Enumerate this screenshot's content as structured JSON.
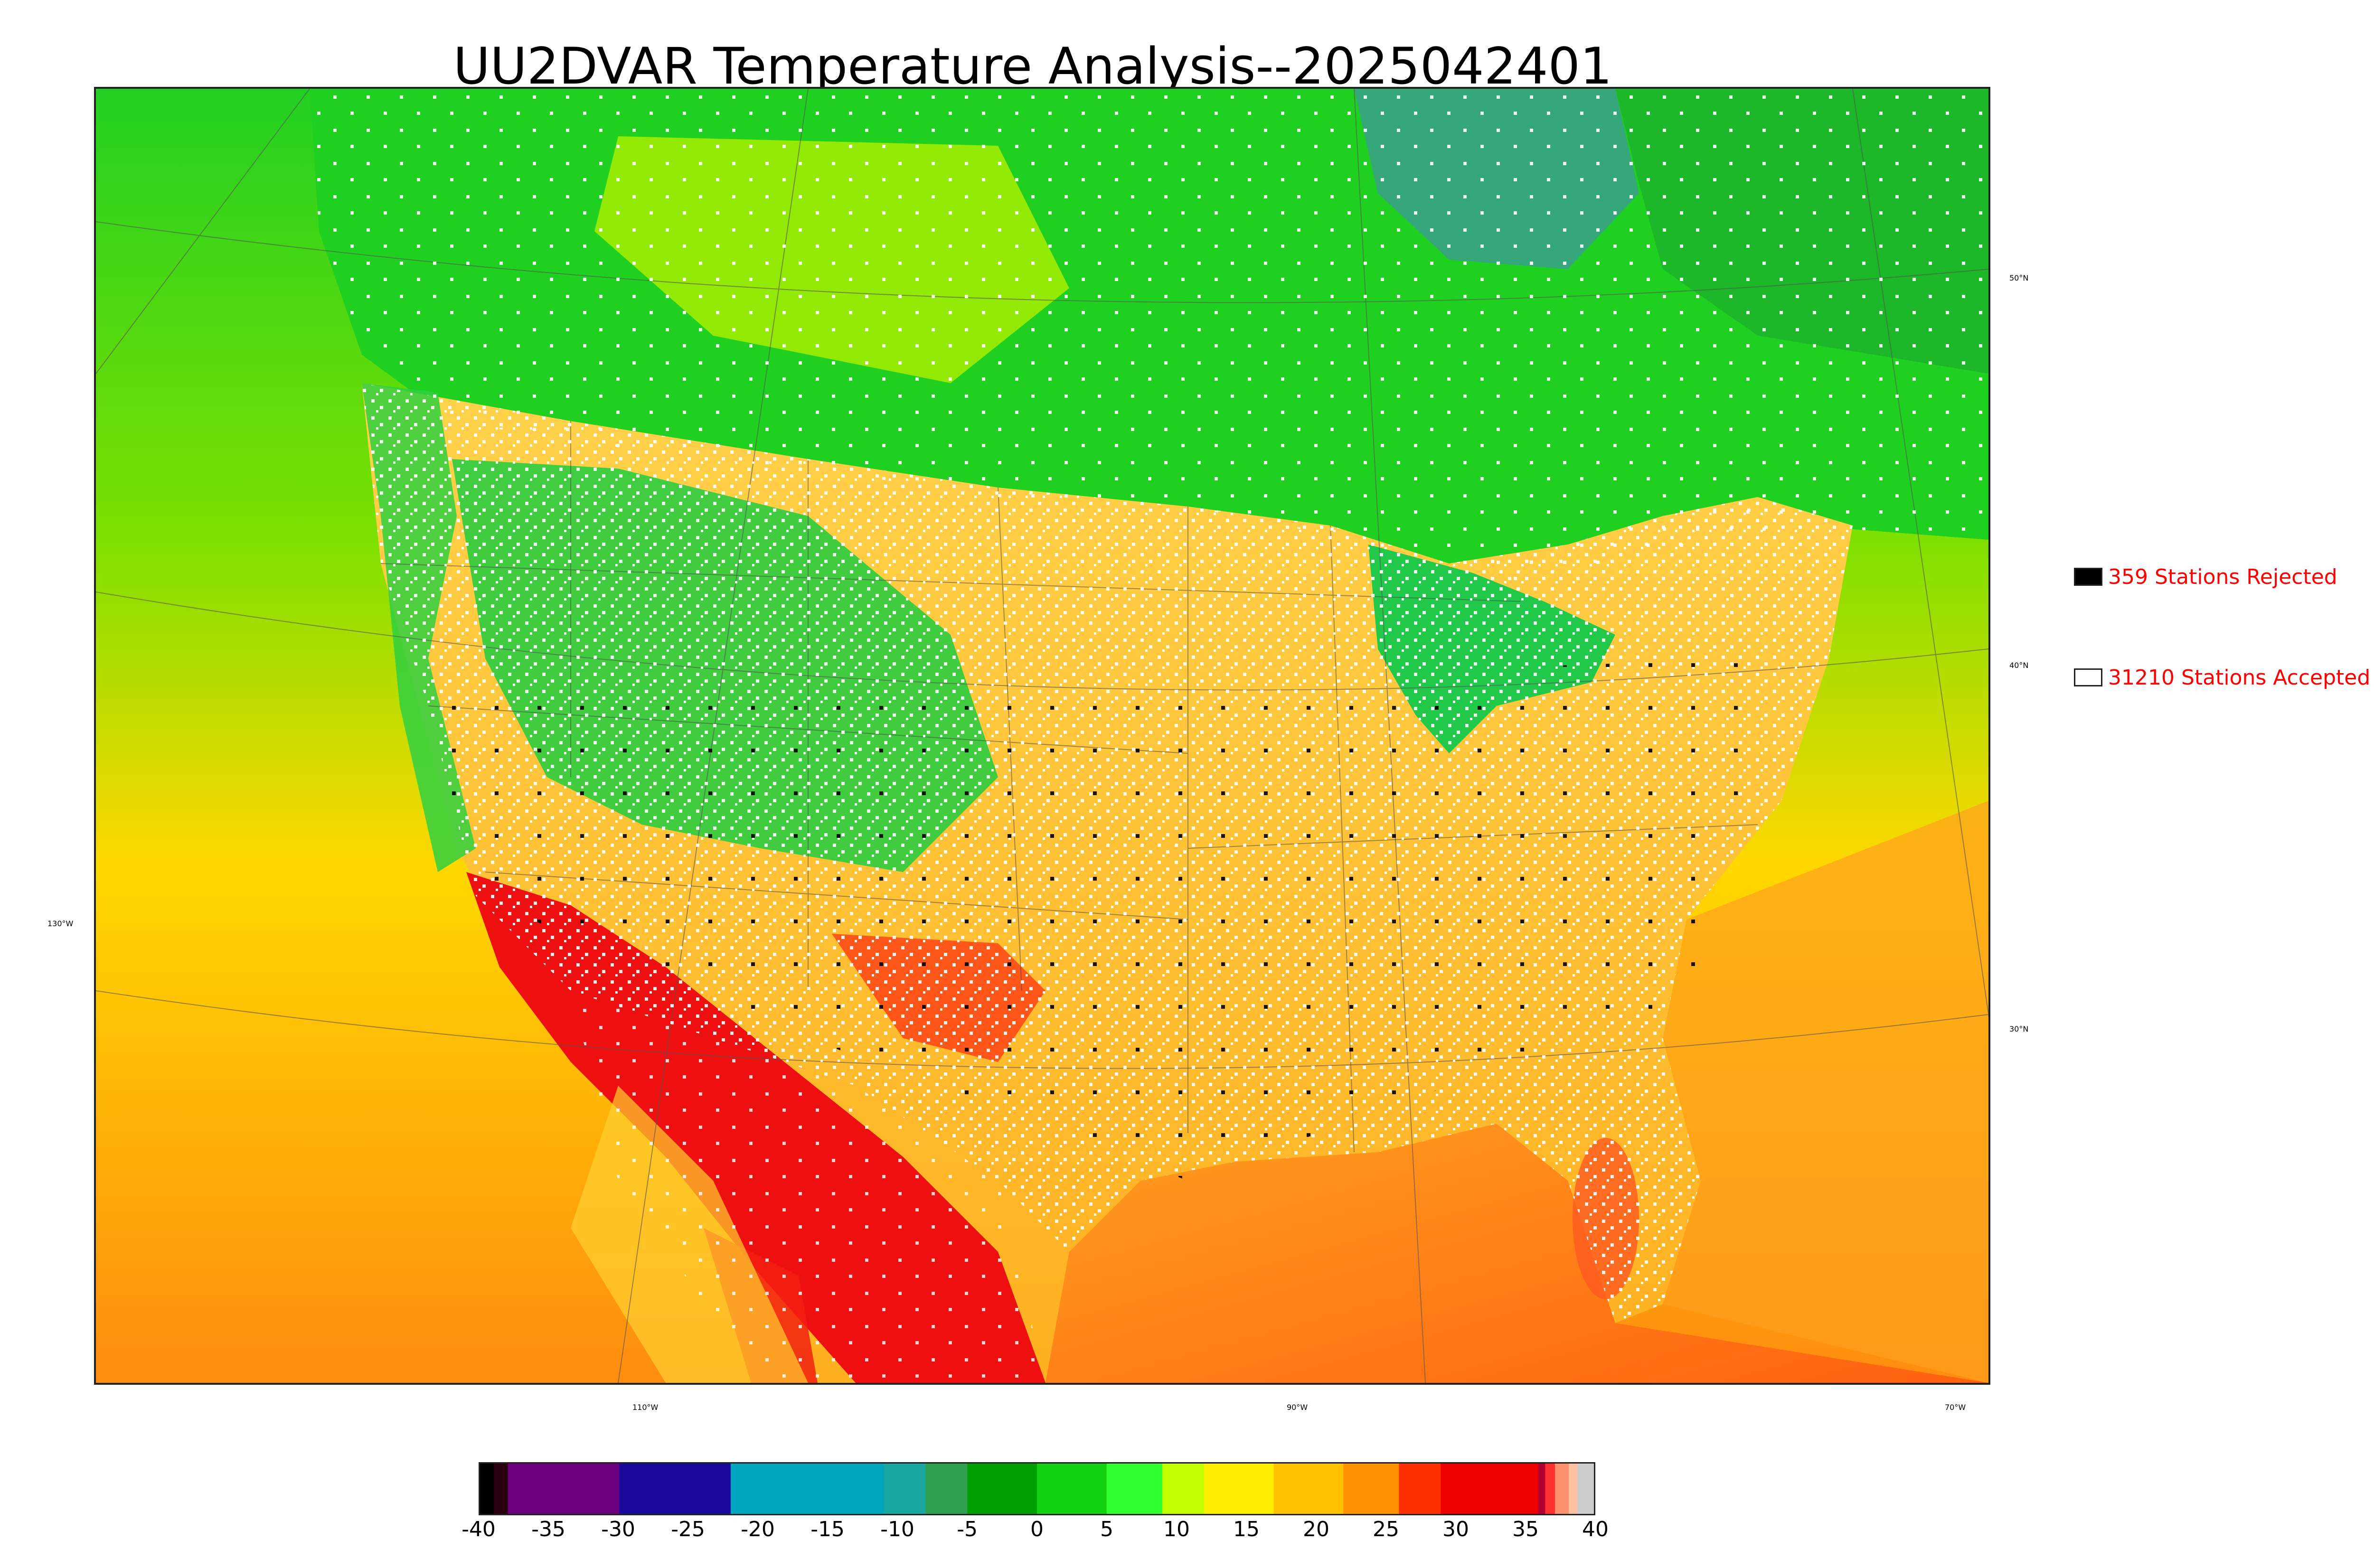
{
  "title": "UU2DVAR Temperature Analysis--2025042401",
  "map": {
    "latitude_labels": [
      "50°N",
      "40°N",
      "30°N"
    ],
    "longitude_labels": [
      "130°W",
      "110°W",
      "90°W",
      "70°W"
    ],
    "field_colors": {
      "ocean_north": "#7fe000",
      "ocean_south": "#ffb000",
      "canada": "#2cd22c",
      "hudson_bay": "#3aa08c",
      "us_interior": "#ffd040",
      "rockies": "#30c840",
      "desert_southwest": "#ee1010",
      "gulf_of_mexico": "#ff8c1a",
      "great_lakes": "#22c84a"
    }
  },
  "legend": [
    {
      "count": "359",
      "label": "359 Stations Rejected",
      "swatch_color": "#000000"
    },
    {
      "count": "31210",
      "label": "31210 Stations Accepted",
      "swatch_color": "#ffffff"
    }
  ],
  "colorbar": {
    "min": -40,
    "max": 40,
    "ticks": [
      "-40",
      "-35",
      "-30",
      "-25",
      "-20",
      "-15",
      "-10",
      "-5",
      "0",
      "5",
      "10",
      "15",
      "20",
      "25",
      "30",
      "35",
      "40"
    ],
    "bands": [
      {
        "from": -40,
        "to": -39,
        "color": "#000000"
      },
      {
        "from": -39,
        "to": -38,
        "color": "#2a0010"
      },
      {
        "from": -38,
        "to": -30,
        "color": "#6a0080"
      },
      {
        "from": -30,
        "to": -22,
        "color": "#1a0aa0"
      },
      {
        "from": -22,
        "to": -11,
        "color": "#00a6c0"
      },
      {
        "from": -11,
        "to": -8,
        "color": "#1aa6a0"
      },
      {
        "from": -8,
        "to": -5,
        "color": "#30a050"
      },
      {
        "from": -5,
        "to": 0,
        "color": "#00a000"
      },
      {
        "from": 0,
        "to": 5,
        "color": "#10d010"
      },
      {
        "from": 5,
        "to": 9,
        "color": "#30ff30"
      },
      {
        "from": 9,
        "to": 12,
        "color": "#c0ff00"
      },
      {
        "from": 12,
        "to": 17,
        "color": "#ffee00"
      },
      {
        "from": 17,
        "to": 22,
        "color": "#ffc000"
      },
      {
        "from": 22,
        "to": 26,
        "color": "#ff9000"
      },
      {
        "from": 26,
        "to": 29,
        "color": "#ff3000"
      },
      {
        "from": 29,
        "to": 36,
        "color": "#ee0000"
      },
      {
        "from": 36,
        "to": 36.5,
        "color": "#b00030"
      },
      {
        "from": 36.5,
        "to": 37.2,
        "color": "#ff3030"
      },
      {
        "from": 37.2,
        "to": 38.2,
        "color": "#ff9070"
      },
      {
        "from": 38.2,
        "to": 38.8,
        "color": "#ffc0a0"
      },
      {
        "from": 38.8,
        "to": 40,
        "color": "#cccccc"
      }
    ]
  }
}
